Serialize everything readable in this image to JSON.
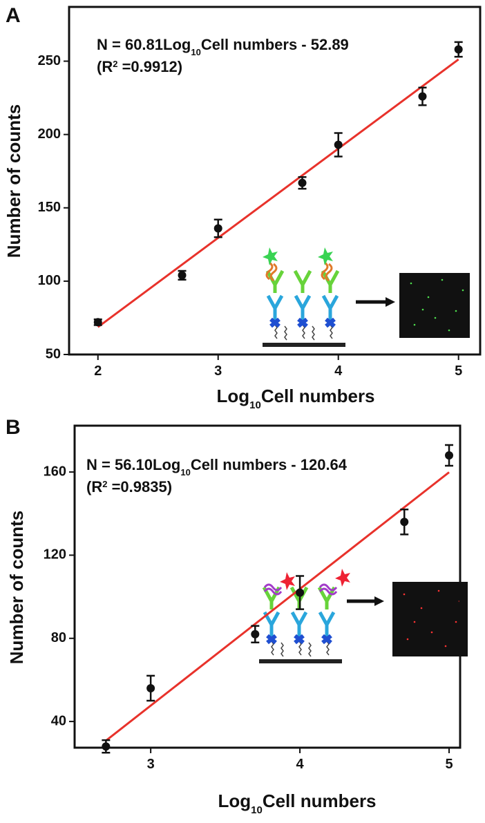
{
  "chart_data": [
    {
      "type": "scatter",
      "panel_label": "A",
      "equation": [
        "N = 60.81Log",
        "10",
        "Cell numbers - 52.89"
      ],
      "r_squared": [
        "(R",
        "2",
        " =0.9912)"
      ],
      "x_label": [
        "Log",
        "10",
        "Cell numbers"
      ],
      "y_label": "Number of counts",
      "x": [
        2,
        2.7,
        3,
        3.7,
        4,
        4.7,
        5
      ],
      "values": [
        72,
        104,
        136,
        167,
        193,
        226,
        258
      ],
      "errors": [
        2,
        3,
        6,
        4,
        8,
        6,
        5
      ],
      "color": "#111111",
      "fit": {
        "x": [
          2,
          5
        ],
        "values": [
          68.7,
          251.2
        ],
        "color": "#e8322b"
      },
      "xlim": [
        1.76,
        5.18
      ],
      "ylim": [
        50,
        287
      ],
      "xticks": [
        2,
        3,
        4,
        5
      ],
      "yticks": [
        50,
        100,
        150,
        200,
        250
      ],
      "label_color": "#39d353"
    },
    {
      "type": "scatter",
      "panel_label": "B",
      "equation": [
        "N = 56.10Log",
        "10",
        "Cell numbers - 120.64"
      ],
      "r_squared": [
        "(R",
        "2",
        " =0.9835)"
      ],
      "x_label": [
        "Log",
        "10",
        "Cell numbers"
      ],
      "y_label": "Number of counts",
      "x": [
        2.7,
        3,
        3.7,
        4,
        4.7,
        5
      ],
      "values": [
        28,
        56,
        82,
        102,
        136,
        168
      ],
      "errors": [
        3,
        6,
        4,
        8,
        6,
        5
      ],
      "color": "#111111",
      "fit": {
        "x": [
          2.7,
          5
        ],
        "values": [
          30.8,
          159.9
        ],
        "color": "#e8322b"
      },
      "xlim": [
        2.49,
        5.074
      ],
      "ylim": [
        27.4,
        182.3
      ],
      "xticks": [
        3,
        4,
        5
      ],
      "yticks": [
        40,
        80,
        120,
        160
      ],
      "label_color": "#ee2233"
    }
  ]
}
